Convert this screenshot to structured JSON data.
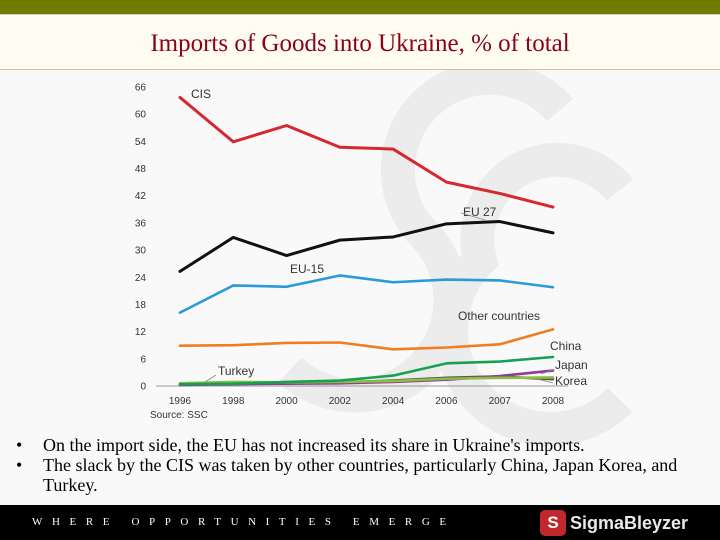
{
  "header": {
    "title": "Imports of Goods into Ukraine, % of total"
  },
  "chart_data": {
    "type": "line",
    "title": "",
    "xlabel": "",
    "ylabel": "",
    "source": "Source: SSC",
    "x": [
      "1996",
      "1998",
      "2000",
      "2002",
      "2004",
      "2006",
      "2007",
      "2008"
    ],
    "y_ticks": [
      0,
      6,
      12,
      18,
      24,
      30,
      36,
      42,
      48,
      54,
      60,
      66
    ],
    "ylim": [
      0,
      66
    ],
    "grid": false,
    "series": [
      {
        "name": "CIS",
        "color": "#d7282f",
        "values": [
          63.7,
          53.9,
          57.5,
          52.7,
          52.3,
          45.0,
          42.5,
          39.5
        ]
      },
      {
        "name": "EU 27",
        "color": "#111111",
        "values": [
          25.3,
          32.8,
          28.8,
          32.2,
          32.9,
          35.8,
          36.3,
          33.8
        ]
      },
      {
        "name": "EU-15",
        "color": "#2a9ad8",
        "values": [
          16.2,
          22.2,
          21.9,
          24.4,
          22.9,
          23.5,
          23.3,
          21.8
        ]
      },
      {
        "name": "Other countries",
        "color": "#ef7d22",
        "values": [
          8.9,
          9.0,
          9.5,
          9.6,
          8.1,
          8.5,
          9.2,
          12.5
        ]
      },
      {
        "name": "China",
        "color": "#18a052",
        "values": [
          0.4,
          0.5,
          0.9,
          1.2,
          2.3,
          5.0,
          5.4,
          6.4
        ]
      },
      {
        "name": "Turkey",
        "color": "#8bbf3f",
        "values": [
          0.6,
          0.9,
          0.8,
          0.9,
          1.1,
          1.6,
          1.8,
          1.9
        ]
      },
      {
        "name": "Japan",
        "color": "#8e3d95",
        "values": [
          0.3,
          0.4,
          0.5,
          0.6,
          0.9,
          1.4,
          2.2,
          3.4
        ]
      },
      {
        "name": "Korea",
        "color": "#555555",
        "values": [
          0.2,
          0.5,
          0.6,
          0.8,
          1.2,
          1.8,
          2.1,
          1.5
        ]
      }
    ]
  },
  "bullets": [
    "On the import side, the EU has not increased its share in Ukraine's imports.",
    "The slack by the CIS was taken by other countries, particularly China, Japan Korea, and Turkey."
  ],
  "footer": {
    "tagline": "WHERE OPPORTUNITIES EMERGE",
    "logo_mark": "S",
    "logo_text": "SigmaBleyzer"
  }
}
